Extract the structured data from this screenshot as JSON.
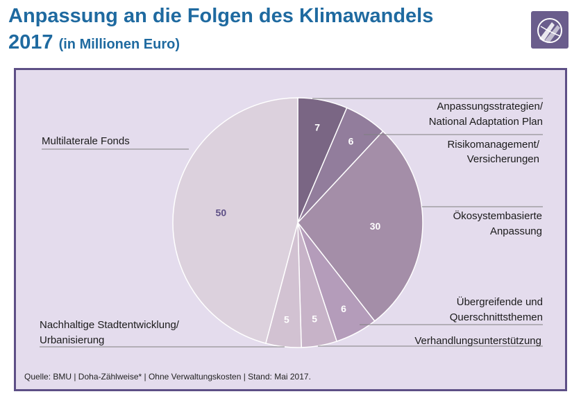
{
  "header": {
    "title_main": "Anpassung an die Folgen des Klimawandels",
    "year": "2017",
    "unit": "(in Millionen Euro)"
  },
  "logo_icon": "globe-icon",
  "colors": {
    "title": "#1f6aa0",
    "frame": "#5d4f86",
    "panel_bg": "#e4dced",
    "value_label_dark": "#5d4f86",
    "value_label_light": "#ffffff"
  },
  "chart_data": {
    "type": "pie",
    "title": "",
    "unit": "Millionen Euro",
    "slices": [
      {
        "label": "Anpassungsstrategien/ National Adaptation Plan",
        "value": 7,
        "color": "#7a6684"
      },
      {
        "label": "Risikomanagement/ Versicherungen",
        "value": 6,
        "color": "#927d9c"
      },
      {
        "label": "Ökosystembasierte Anpassung",
        "value": 30,
        "color": "#a48ea8"
      },
      {
        "label": "Übergreifende und Querschnittsthemen",
        "value": 6,
        "color": "#b49cba"
      },
      {
        "label": "Verhandlungsunterstützung",
        "value": 5,
        "color": "#c7b3c8"
      },
      {
        "label": "Nachhaltige Stadtentwicklung/ Urbanisierung",
        "value": 5,
        "color": "#d2c2d2"
      },
      {
        "label": "Multilaterale Fonds",
        "value": 50,
        "color": "#dcd1dd"
      }
    ]
  },
  "footer": {
    "source": "Quelle: BMU | Doha-Zählweise* | Ohne Verwaltungskosten | Stand: Mai 2017."
  }
}
